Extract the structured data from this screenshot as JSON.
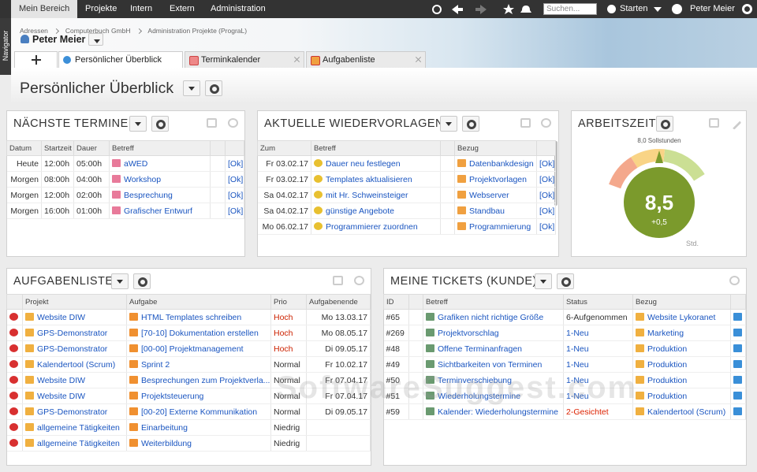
{
  "nav": {
    "items": [
      "Mein Bereich",
      "Projekte",
      "Intern",
      "Extern",
      "Administration"
    ],
    "search_placeholder": "Suchen...",
    "start": "Starten",
    "user": "Peter Meier"
  },
  "navigator": "Navigator",
  "breadcrumb": [
    "Adressen",
    "Computerbuch GmbH",
    "Administration Projekte (PrograL)"
  ],
  "user": "Peter Meier",
  "tabs": [
    "Persönlicher Überblick",
    "Terminkalender",
    "Aufgabenliste"
  ],
  "page_title": "Persönlicher Überblick",
  "termine": {
    "title": "NÄCHSTE TERMINE",
    "columns": [
      "Datum",
      "Startzeit",
      "Dauer",
      "Betreff"
    ],
    "rows": [
      [
        "Heute",
        "12:00h",
        "05:00h",
        "aWED",
        "[Ok]"
      ],
      [
        "Morgen",
        "08:00h",
        "04:00h",
        "Workshop",
        "[Ok]"
      ],
      [
        "Morgen",
        "12:00h",
        "02:00h",
        "Besprechung",
        "[Ok]"
      ],
      [
        "Morgen",
        "16:00h",
        "01:00h",
        "Grafischer Entwurf",
        "[Ok]"
      ]
    ]
  },
  "wiedervorlagen": {
    "title": "AKTUELLE WIEDERVORLAGEN",
    "columns": [
      "Zum",
      "Betreff",
      "Bezug"
    ],
    "rows": [
      [
        "Fr 03.02.17",
        "Dauer neu festlegen",
        "Datenbankdesign",
        "[Ok]"
      ],
      [
        "Fr 03.02.17",
        "Templates aktualisieren",
        "Projektvorlagen",
        "[Ok]"
      ],
      [
        "Sa 04.02.17",
        "mit Hr. Schweinsteiger",
        "Webserver",
        "[Ok]"
      ],
      [
        "Sa 04.02.17",
        "günstige Angebote",
        "Standbau",
        "[Ok]"
      ],
      [
        "Mo 06.02.17",
        "Programmierer zuordnen",
        "Programmierung",
        "[Ok]"
      ]
    ]
  },
  "arbeitszeit": {
    "title": "ARBEITSZEIT",
    "target_label": "8,0 Sollstunden",
    "value": "8,5",
    "delta": "+0,5",
    "unit": "Std."
  },
  "aufgaben": {
    "title": "AUFGABENLISTE",
    "columns": [
      "Projekt",
      "Aufgabe",
      "Prio",
      "Aufgabenende"
    ],
    "rows": [
      [
        "Website DIW",
        "HTML Templates schreiben",
        "Hoch",
        "Mo 13.03.17"
      ],
      [
        "GPS-Demonstrator",
        "[70-10] Dokumentation erstellen",
        "Hoch",
        "Mo 08.05.17"
      ],
      [
        "GPS-Demonstrator",
        "[00-00] Projektmanagement",
        "Hoch",
        "Di 09.05.17"
      ],
      [
        "Kalendertool (Scrum)",
        "Sprint 2",
        "Normal",
        "Fr 10.02.17"
      ],
      [
        "Website DIW",
        "Besprechungen zum Projektverla...",
        "Normal",
        "Fr 07.04.17"
      ],
      [
        "Website DIW",
        "Projektsteuerung",
        "Normal",
        "Fr 07.04.17"
      ],
      [
        "GPS-Demonstrator",
        "[00-20] Externe Kommunikation",
        "Normal",
        "Di 09.05.17"
      ],
      [
        "allgemeine Tätigkeiten",
        "Einarbeitung",
        "Niedrig",
        ""
      ],
      [
        "allgemeine Tätigkeiten",
        "Weiterbildung",
        "Niedrig",
        ""
      ]
    ],
    "prio_colors": [
      "#cc2200",
      "#cc2200",
      "#cc2200",
      "#333333",
      "#333333",
      "#333333",
      "#333333",
      "#333333",
      "#333333"
    ]
  },
  "tickets": {
    "title": "MEINE TICKETS (KUNDE)",
    "columns": [
      "ID",
      "Betreff",
      "Status",
      "Bezug"
    ],
    "rows": [
      [
        "#65",
        "Grafiken nicht richtige Größe",
        "6-Aufgenommen",
        "Website Lykoranet"
      ],
      [
        "#269",
        "Projektvorschlag",
        "1-Neu",
        "Marketing"
      ],
      [
        "#48",
        "Offene Terminanfragen",
        "1-Neu",
        "Produktion"
      ],
      [
        "#49",
        "Sichtbarkeiten von Terminen",
        "1-Neu",
        "Produktion"
      ],
      [
        "#50",
        "Terminverschiebung",
        "1-Neu",
        "Produktion"
      ],
      [
        "#51",
        "Wiederholungstermine",
        "1-Neu",
        "Produktion"
      ],
      [
        "#59",
        "Kalender: Wiederholungstermine",
        "2-Gesichtet",
        "Kalendertool (Scrum)"
      ]
    ],
    "status_colors": [
      "#333333",
      "#1a55c0",
      "#1a55c0",
      "#1a55c0",
      "#1a55c0",
      "#1a55c0",
      "#dd2200"
    ]
  },
  "watermark": "SoftwareSuggest.com"
}
